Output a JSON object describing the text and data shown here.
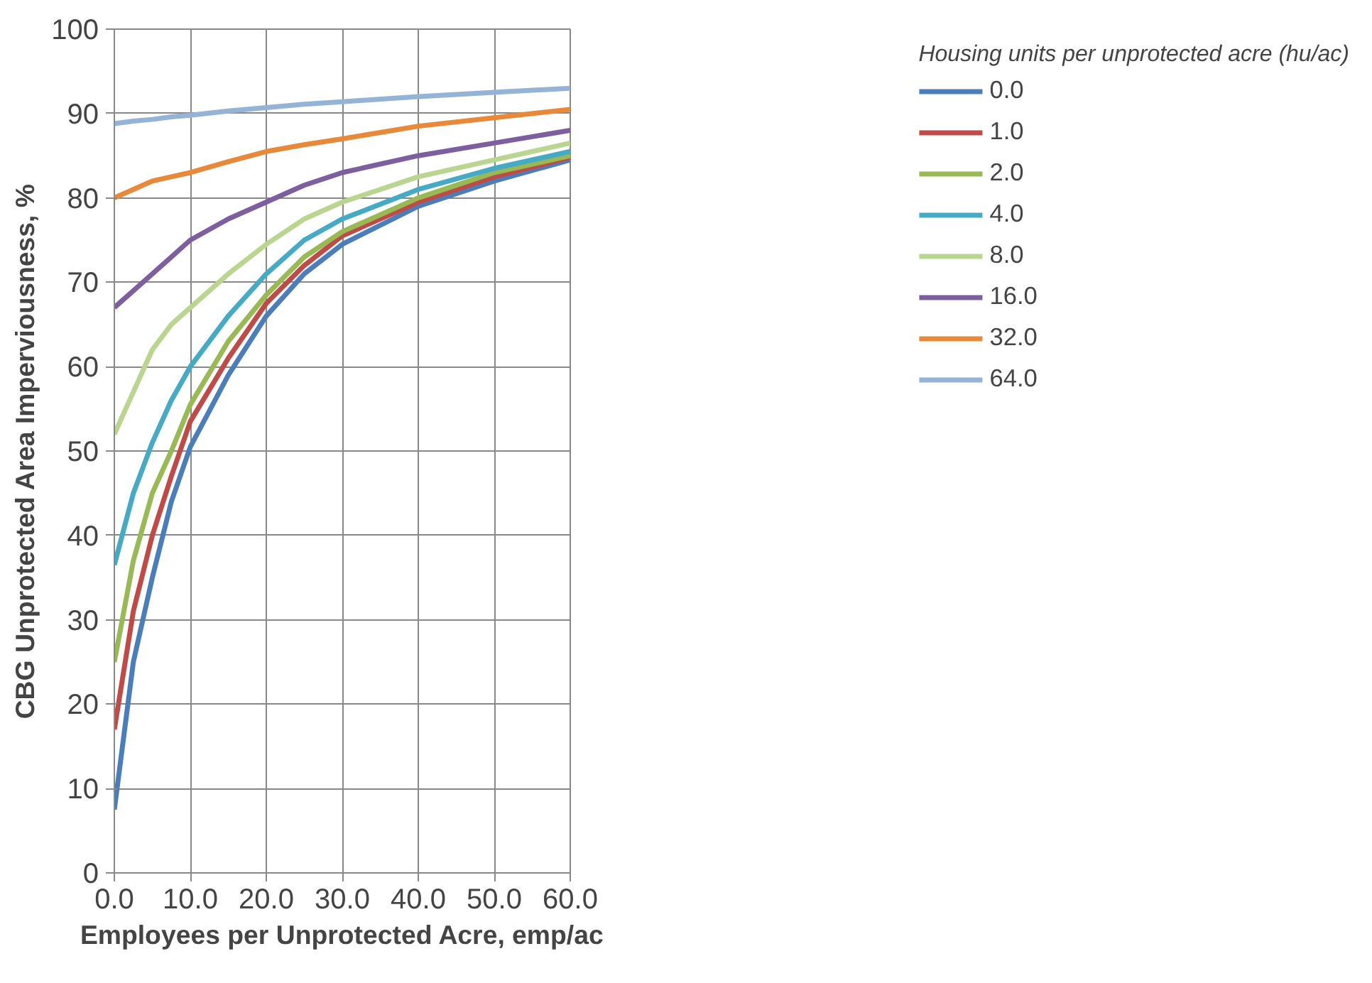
{
  "chart_data": {
    "type": "line",
    "xlabel": "Employees per Unprotected Acre, emp/ac",
    "ylabel": "CBG Unprotected Area Imperviousness, %",
    "legend_title": "Housing units per unprotected acre (hu/ac)",
    "x": [
      0,
      2.5,
      5,
      7.5,
      10,
      15,
      20,
      25,
      30,
      40,
      50,
      60
    ],
    "xlim": [
      0,
      60
    ],
    "ylim": [
      0,
      100
    ],
    "xticks": [
      {
        "value": 0,
        "label": "0.0"
      },
      {
        "value": 10,
        "label": "10.0"
      },
      {
        "value": 20,
        "label": "20.0"
      },
      {
        "value": 30,
        "label": "30.0"
      },
      {
        "value": 40,
        "label": "40.0"
      },
      {
        "value": 50,
        "label": "50.0"
      },
      {
        "value": 60,
        "label": "60.0"
      }
    ],
    "yticks": [
      0,
      10,
      20,
      30,
      40,
      50,
      60,
      70,
      80,
      90,
      100
    ],
    "grid": true,
    "legend": "right",
    "marker": "none",
    "line_style": "solid",
    "series": [
      {
        "name": "0.0",
        "color": "#4a7ebb",
        "values": [
          7.5,
          25,
          35,
          44,
          50.5,
          59,
          66,
          71,
          74.5,
          79,
          82,
          84.5
        ]
      },
      {
        "name": "1.0",
        "color": "#be4b48",
        "values": [
          17,
          31,
          40,
          47,
          53.5,
          61,
          67.5,
          72,
          75.5,
          79.5,
          82.5,
          84.8
        ]
      },
      {
        "name": "2.0",
        "color": "#98b954",
        "values": [
          25,
          37,
          45,
          50,
          55.5,
          63,
          68.5,
          73,
          76,
          80,
          83,
          85
        ]
      },
      {
        "name": "4.0",
        "color": "#46aac5",
        "values": [
          36.5,
          45,
          51,
          56,
          60,
          66,
          71,
          75,
          77.5,
          81,
          83.5,
          85.5
        ]
      },
      {
        "name": "8.0",
        "color": "#b9d58f",
        "values": [
          52,
          57,
          62,
          65,
          67,
          71,
          74.5,
          77.5,
          79.5,
          82.5,
          84.5,
          86.5
        ]
      },
      {
        "name": "16.0",
        "color": "#7d5fa0",
        "values": [
          67,
          69,
          71,
          73,
          75,
          77.5,
          79.5,
          81.5,
          83,
          85,
          86.5,
          88
        ]
      },
      {
        "name": "32.0",
        "color": "#e8893a",
        "values": [
          80,
          81,
          82,
          82.5,
          83,
          84.3,
          85.5,
          86.3,
          87,
          88.5,
          89.5,
          90.5
        ]
      },
      {
        "name": "64.0",
        "color": "#95b3d7",
        "values": [
          88.8,
          89.1,
          89.3,
          89.6,
          89.8,
          90.3,
          90.7,
          91.1,
          91.4,
          92,
          92.5,
          93
        ]
      }
    ]
  }
}
